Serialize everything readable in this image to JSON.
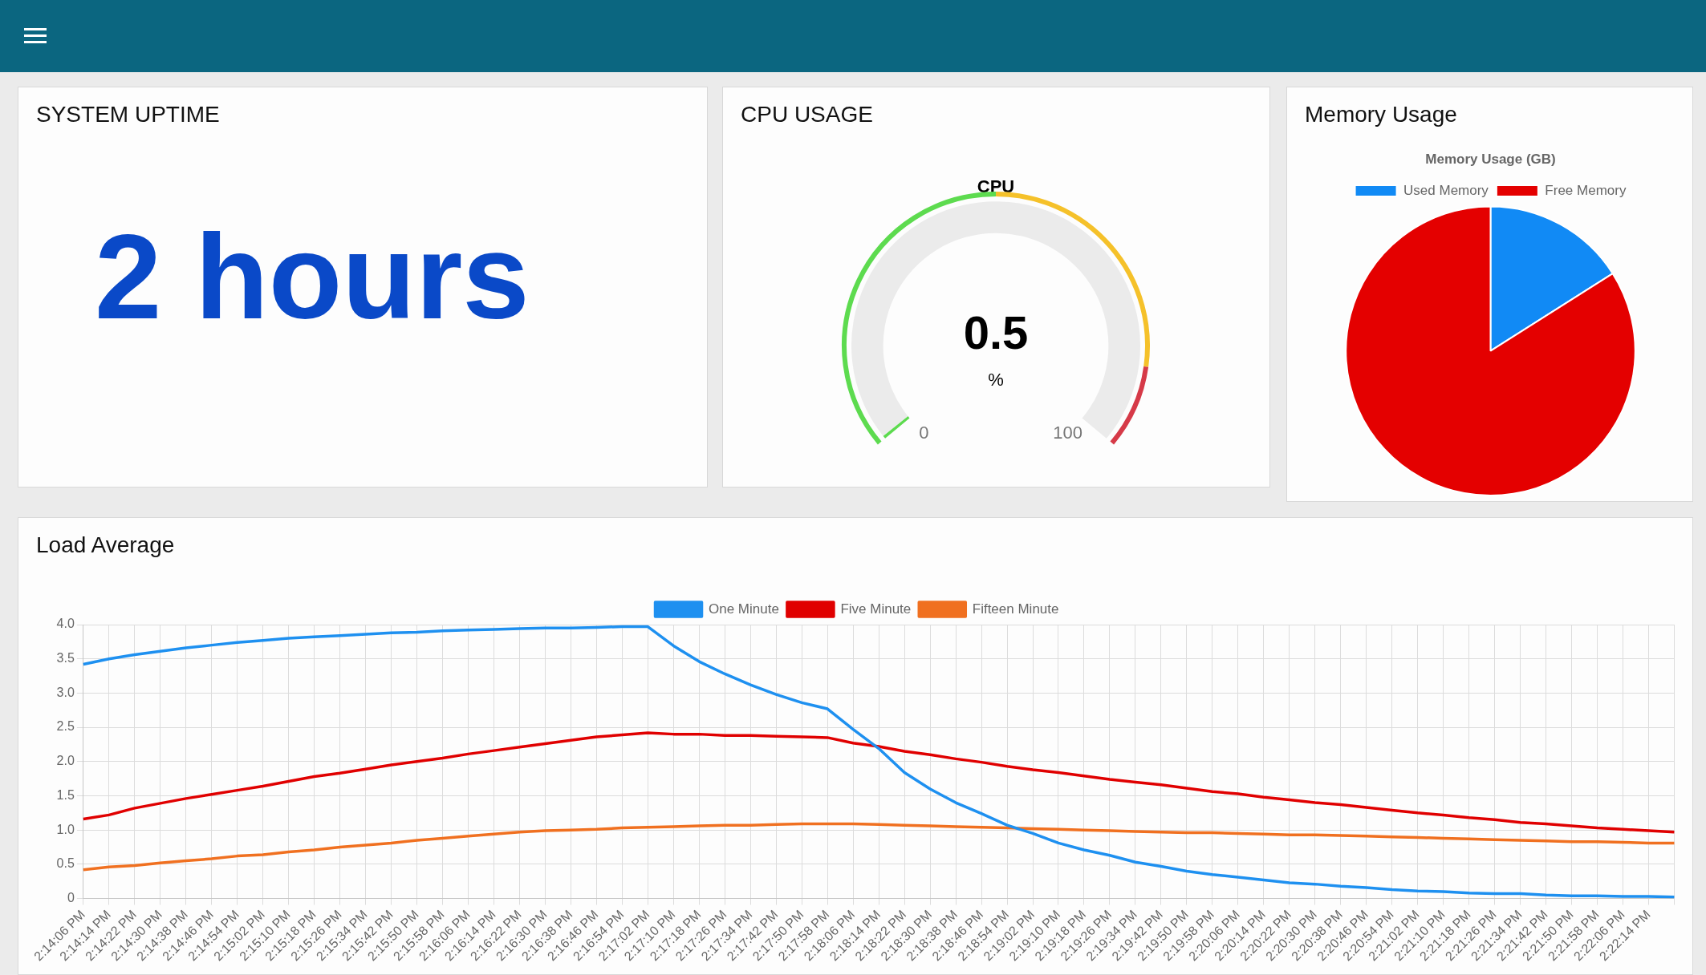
{
  "chart_data": [
    {
      "type": "other",
      "title": "SYSTEM UPTIME",
      "annotations": [
        "2 hours"
      ]
    },
    {
      "type": "donut",
      "title": "CPU USAGE",
      "subtitle": "CPU",
      "categories": [
        null,
        null
      ],
      "values": [
        0.5,
        99.5
      ],
      "colors": [
        "#5ddb4f",
        "#ebebeb"
      ],
      "annotations": [
        "0.5",
        "%",
        "0",
        "100"
      ]
    },
    {
      "type": "pie",
      "title": "Memory Usage",
      "subtitle": "Memory Usage (GB)",
      "categories": [
        "Used Memory",
        "Free Memory"
      ],
      "values": [
        16,
        84
      ],
      "colors": [
        "#118af5",
        "#e40000"
      ],
      "legend": "top"
    },
    {
      "type": "line",
      "title": "Load Average",
      "categories": [
        "2:14:06 PM",
        "2:14:14 PM",
        "2:14:22 PM",
        "2:14:30 PM",
        "2:14:38 PM",
        "2:14:46 PM",
        "2:14:54 PM",
        "2:15:02 PM",
        "2:15:10 PM",
        "2:15:18 PM",
        "2:15:26 PM",
        "2:15:34 PM",
        "2:15:42 PM",
        "2:15:50 PM",
        "2:15:58 PM",
        "2:16:06 PM",
        "2:16:14 PM",
        "2:16:22 PM",
        "2:16:30 PM",
        "2:16:38 PM",
        "2:16:46 PM",
        "2:16:54 PM",
        "2:17:02 PM",
        "2:17:10 PM",
        "2:17:18 PM",
        "2:17:26 PM",
        "2:17:34 PM",
        "2:17:42 PM",
        "2:17:50 PM",
        "2:17:58 PM",
        "2:18:06 PM",
        "2:18:14 PM",
        "2:18:22 PM",
        "2:18:30 PM",
        "2:18:38 PM",
        "2:18:46 PM",
        "2:18:54 PM",
        "2:19:02 PM",
        "2:19:10 PM",
        "2:19:18 PM",
        "2:19:26 PM",
        "2:19:34 PM",
        "2:19:42 PM",
        "2:19:50 PM",
        "2:19:58 PM",
        "2:20:06 PM",
        "2:20:14 PM",
        "2:20:22 PM",
        "2:20:30 PM",
        "2:20:38 PM",
        "2:20:46 PM",
        "2:20:54 PM",
        "2:21:02 PM",
        "2:21:10 PM",
        "2:21:18 PM",
        "2:21:26 PM",
        "2:21:34 PM",
        "2:21:42 PM",
        "2:21:50 PM",
        "2:21:58 PM",
        "2:22:06 PM",
        "2:22:14 PM",
        null
      ],
      "series": [
        {
          "name": "One Minute",
          "color": "#1e90f0",
          "values": [
            3.42,
            3.5,
            3.56,
            3.61,
            3.66,
            3.7,
            3.74,
            3.77,
            3.8,
            3.82,
            3.84,
            3.86,
            3.88,
            3.89,
            3.91,
            3.92,
            3.93,
            3.94,
            3.95,
            3.95,
            3.96,
            3.97,
            3.97,
            3.69,
            3.46,
            3.28,
            3.12,
            2.98,
            2.86,
            2.77,
            2.47,
            2.19,
            1.84,
            1.6,
            1.4,
            1.24,
            1.07,
            0.95,
            0.81,
            0.71,
            0.63,
            0.53,
            0.47,
            0.4,
            0.35,
            0.31,
            0.27,
            0.23,
            0.21,
            0.18,
            0.16,
            0.13,
            0.11,
            0.1,
            0.08,
            0.07,
            0.07,
            0.05,
            0.04,
            0.04,
            0.03,
            0.03,
            0.02
          ]
        },
        {
          "name": "Five Minute",
          "color": "#e00000",
          "values": [
            1.16,
            1.22,
            1.32,
            1.39,
            1.46,
            1.52,
            1.58,
            1.64,
            1.71,
            1.78,
            1.83,
            1.89,
            1.95,
            2.0,
            2.05,
            2.11,
            2.16,
            2.21,
            2.26,
            2.31,
            2.36,
            2.39,
            2.42,
            2.4,
            2.4,
            2.38,
            2.38,
            2.37,
            2.36,
            2.35,
            2.27,
            2.22,
            2.15,
            2.1,
            2.04,
            1.99,
            1.93,
            1.88,
            1.84,
            1.79,
            1.74,
            1.7,
            1.66,
            1.61,
            1.56,
            1.53,
            1.48,
            1.44,
            1.4,
            1.37,
            1.33,
            1.29,
            1.25,
            1.22,
            1.18,
            1.15,
            1.11,
            1.09,
            1.06,
            1.03,
            1.01,
            0.99,
            0.97
          ]
        },
        {
          "name": "Fifteen Minute",
          "color": "#f07020",
          "values": [
            0.42,
            0.46,
            0.48,
            0.52,
            0.55,
            0.58,
            0.62,
            0.64,
            0.68,
            0.71,
            0.75,
            0.78,
            0.81,
            0.85,
            0.88,
            0.91,
            0.94,
            0.97,
            0.99,
            1.0,
            1.01,
            1.03,
            1.04,
            1.05,
            1.06,
            1.07,
            1.07,
            1.08,
            1.09,
            1.09,
            1.09,
            1.08,
            1.07,
            1.06,
            1.05,
            1.04,
            1.03,
            1.02,
            1.01,
            1.0,
            0.99,
            0.98,
            0.97,
            0.96,
            0.96,
            0.95,
            0.94,
            0.93,
            0.93,
            0.92,
            0.91,
            0.9,
            0.89,
            0.88,
            0.87,
            0.86,
            0.85,
            0.84,
            0.83,
            0.83,
            0.82,
            0.81,
            0.81
          ]
        }
      ],
      "ylim": [
        0,
        4
      ],
      "yticks": [
        0,
        0.5,
        {
          "value": 1,
          "label": "1.0"
        },
        1.5,
        {
          "value": 2,
          "label": "2.0"
        },
        2.5,
        {
          "value": 3,
          "label": "3.0"
        },
        3.5,
        {
          "value": 4,
          "label": "4.0"
        }
      ],
      "grid": true,
      "legend": "top",
      "marker": "none",
      "line_style": "solid"
    }
  ]
}
